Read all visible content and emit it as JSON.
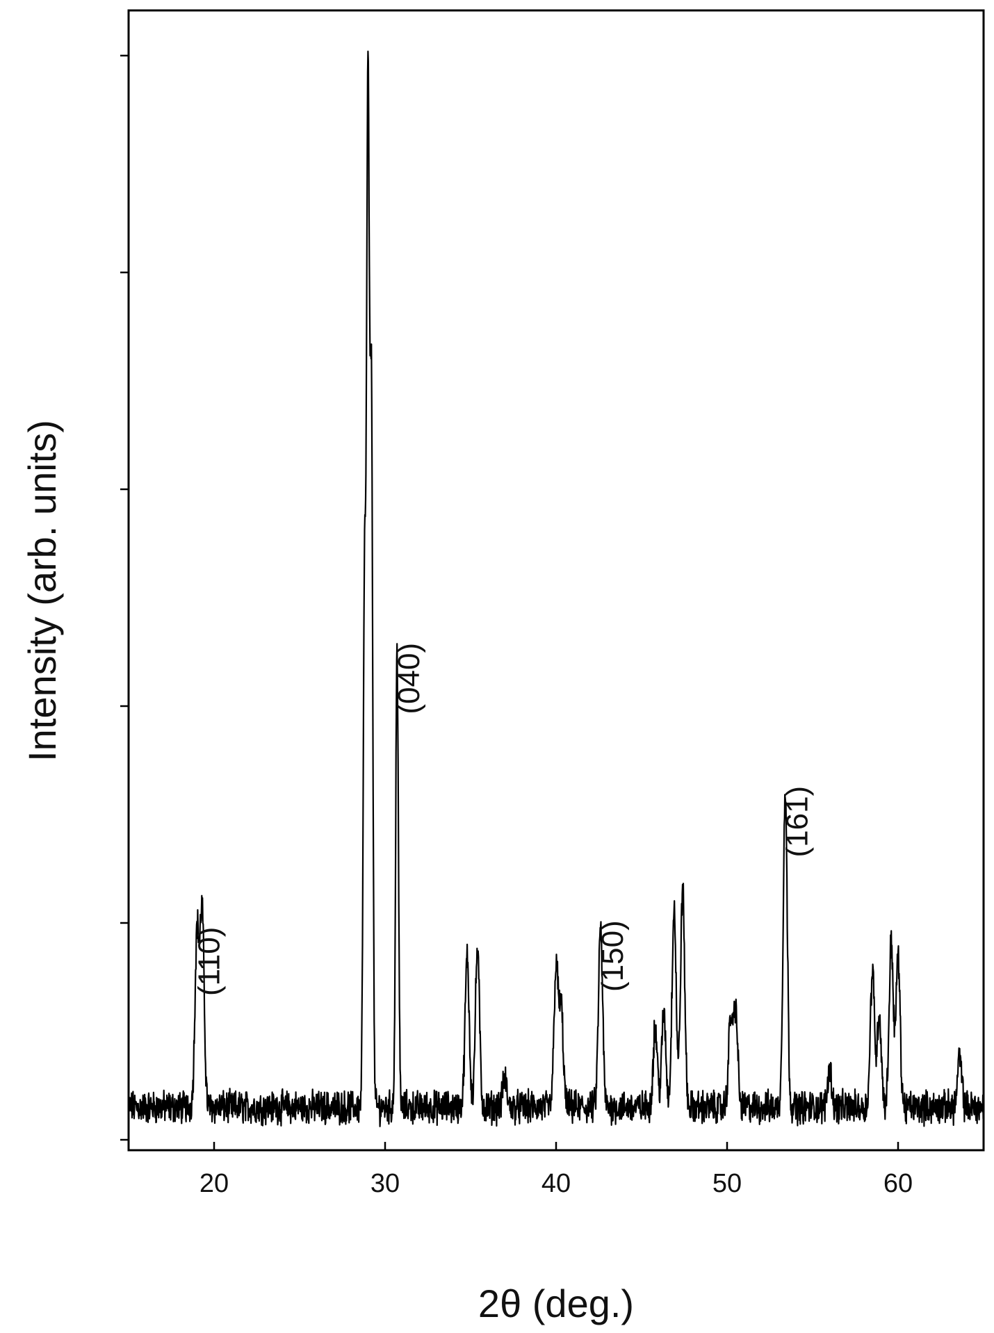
{
  "chart_data": {
    "type": "line",
    "title": "",
    "xlabel": "2θ  (deg.)",
    "ylabel": "Intensity (arb. units)",
    "xlim": [
      15,
      65
    ],
    "ylim": [
      0,
      500
    ],
    "x_ticks": [
      20,
      30,
      40,
      50,
      60
    ],
    "y_ticks": [
      0,
      100,
      200,
      300,
      400,
      500
    ],
    "y_tick_labels_shown": false,
    "grid": false,
    "legend": "none",
    "line_color": "#000000",
    "baseline": 15,
    "noise_amplitude": 6,
    "peaks": [
      {
        "x": 19.0,
        "y": 95,
        "label": "(110)"
      },
      {
        "x": 19.3,
        "y": 105
      },
      {
        "x": 28.8,
        "y": 255
      },
      {
        "x": 29.0,
        "y": 475
      },
      {
        "x": 29.2,
        "y": 340
      },
      {
        "x": 30.7,
        "y": 226,
        "label": "(040)"
      },
      {
        "x": 34.8,
        "y": 84
      },
      {
        "x": 35.4,
        "y": 88
      },
      {
        "x": 37.0,
        "y": 28
      },
      {
        "x": 40.0,
        "y": 80
      },
      {
        "x": 40.3,
        "y": 60
      },
      {
        "x": 42.6,
        "y": 98,
        "label": "(150)"
      },
      {
        "x": 45.8,
        "y": 52
      },
      {
        "x": 46.3,
        "y": 58
      },
      {
        "x": 46.9,
        "y": 108
      },
      {
        "x": 47.4,
        "y": 116
      },
      {
        "x": 50.2,
        "y": 55
      },
      {
        "x": 50.5,
        "y": 60
      },
      {
        "x": 53.4,
        "y": 160,
        "label": "(161)"
      },
      {
        "x": 56.0,
        "y": 33
      },
      {
        "x": 58.5,
        "y": 78
      },
      {
        "x": 58.9,
        "y": 58
      },
      {
        "x": 59.6,
        "y": 92
      },
      {
        "x": 60.0,
        "y": 84
      },
      {
        "x": 63.6,
        "y": 38
      }
    ]
  }
}
